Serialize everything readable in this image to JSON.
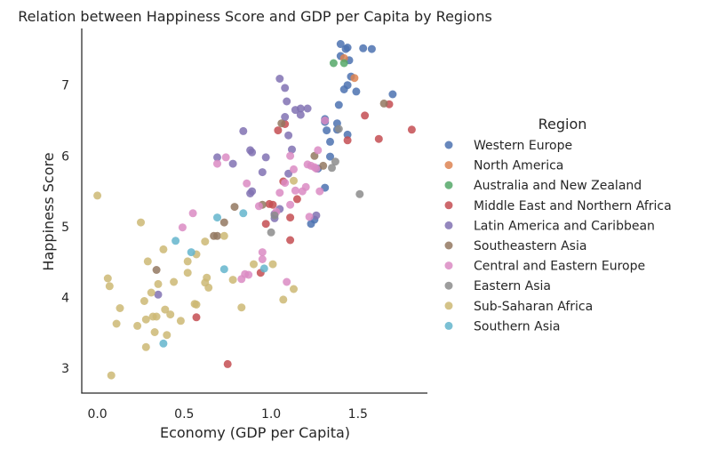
{
  "chart_data": {
    "type": "scatter",
    "title": "Relation between Happiness Score and GDP per Capita by Regions",
    "xlabel": "Economy (GDP per Capita)",
    "ylabel": "Happiness Score",
    "xlim": [
      -0.09,
      1.9
    ],
    "ylim": [
      2.65,
      7.8
    ],
    "xticks": [
      0.0,
      0.5,
      1.0,
      1.5
    ],
    "xtick_labels": [
      "0.0",
      "0.5",
      "1.0",
      "1.5"
    ],
    "yticks": [
      3,
      4,
      5,
      6,
      7
    ],
    "ytick_labels": [
      "3",
      "4",
      "5",
      "6",
      "7"
    ],
    "grid": false,
    "legend": {
      "title": "Region",
      "placement": "right"
    },
    "series": [
      {
        "name": "Western Europe",
        "color": "#4c72b0",
        "points": [
          [
            1.4,
            7.58
          ],
          [
            1.44,
            7.53
          ],
          [
            1.53,
            7.52
          ],
          [
            1.58,
            7.51
          ],
          [
            1.43,
            7.51
          ],
          [
            1.4,
            7.41
          ],
          [
            1.45,
            7.35
          ],
          [
            1.46,
            7.12
          ],
          [
            1.44,
            7.0
          ],
          [
            1.49,
            6.91
          ],
          [
            1.42,
            6.94
          ],
          [
            1.7,
            6.87
          ],
          [
            1.39,
            6.72
          ],
          [
            1.31,
            6.48
          ],
          [
            1.38,
            6.46
          ],
          [
            1.31,
            6.52
          ],
          [
            1.32,
            6.36
          ],
          [
            1.44,
            6.3
          ],
          [
            1.38,
            6.37
          ],
          [
            1.34,
            6.2
          ],
          [
            1.34,
            5.99
          ],
          [
            1.27,
            5.82
          ],
          [
            1.31,
            5.55
          ],
          [
            1.25,
            5.1
          ],
          [
            1.23,
            5.04
          ]
        ]
      },
      {
        "name": "North America",
        "color": "#dd8452",
        "points": [
          [
            1.48,
            7.1
          ],
          [
            1.42,
            7.38
          ]
        ]
      },
      {
        "name": "Australia and New Zealand",
        "color": "#55a868",
        "points": [
          [
            1.36,
            7.31
          ],
          [
            1.42,
            7.31
          ]
        ]
      },
      {
        "name": "Middle East and Northern Africa",
        "color": "#c44e52",
        "points": [
          [
            1.81,
            6.37
          ],
          [
            1.62,
            6.24
          ],
          [
            1.54,
            6.57
          ],
          [
            1.68,
            6.73
          ],
          [
            1.44,
            6.22
          ],
          [
            1.04,
            6.36
          ],
          [
            1.07,
            5.64
          ],
          [
            0.99,
            5.32
          ],
          [
            1.01,
            5.31
          ],
          [
            1.15,
            5.39
          ],
          [
            1.11,
            5.13
          ],
          [
            0.97,
            5.04
          ],
          [
            0.94,
            4.35
          ],
          [
            0.57,
            3.72
          ],
          [
            0.75,
            3.06
          ],
          [
            1.11,
            4.81
          ],
          [
            1.08,
            6.45
          ]
        ]
      },
      {
        "name": "Latin America and Caribbean",
        "color": "#8172b3",
        "points": [
          [
            1.05,
            7.09
          ],
          [
            1.08,
            6.96
          ],
          [
            1.09,
            6.77
          ],
          [
            1.14,
            6.65
          ],
          [
            1.17,
            6.67
          ],
          [
            1.21,
            6.67
          ],
          [
            1.17,
            6.58
          ],
          [
            1.08,
            6.55
          ],
          [
            1.1,
            6.29
          ],
          [
            0.84,
            6.35
          ],
          [
            1.12,
            6.09
          ],
          [
            0.88,
            6.08
          ],
          [
            0.89,
            6.05
          ],
          [
            0.97,
            5.98
          ],
          [
            0.69,
            5.98
          ],
          [
            0.95,
            5.77
          ],
          [
            0.78,
            5.89
          ],
          [
            1.1,
            5.75
          ],
          [
            0.88,
            5.47
          ],
          [
            0.89,
            5.5
          ],
          [
            1.02,
            5.18
          ],
          [
            1.02,
            5.12
          ],
          [
            1.05,
            5.25
          ],
          [
            1.26,
            5.16
          ],
          [
            0.35,
            4.04
          ]
        ]
      },
      {
        "name": "Southeastern Asia",
        "color": "#937860",
        "points": [
          [
            1.65,
            6.74
          ],
          [
            1.06,
            6.46
          ],
          [
            1.3,
            5.86
          ],
          [
            1.25,
            6.0
          ],
          [
            0.95,
            5.31
          ],
          [
            0.79,
            5.28
          ],
          [
            0.73,
            5.06
          ],
          [
            0.69,
            4.87
          ],
          [
            0.67,
            4.87
          ],
          [
            0.34,
            4.39
          ]
        ]
      },
      {
        "name": "Central and Eastern Europe",
        "color": "#da8bc3",
        "points": [
          [
            1.31,
            6.5
          ],
          [
            1.27,
            6.08
          ],
          [
            1.11,
            6.0
          ],
          [
            1.08,
            5.62
          ],
          [
            1.13,
            5.81
          ],
          [
            1.21,
            5.88
          ],
          [
            1.23,
            5.86
          ],
          [
            1.25,
            5.84
          ],
          [
            1.26,
            5.82
          ],
          [
            1.2,
            5.56
          ],
          [
            1.14,
            5.51
          ],
          [
            1.05,
            5.48
          ],
          [
            1.11,
            5.31
          ],
          [
            1.22,
            5.14
          ],
          [
            1.03,
            5.21
          ],
          [
            0.95,
            4.64
          ],
          [
            0.95,
            4.54
          ],
          [
            0.93,
            5.29
          ],
          [
            0.87,
            4.32
          ],
          [
            0.85,
            4.33
          ],
          [
            0.83,
            4.26
          ],
          [
            0.69,
            5.89
          ],
          [
            0.74,
            5.98
          ],
          [
            0.55,
            5.19
          ],
          [
            0.49,
            4.99
          ],
          [
            1.09,
            4.22
          ],
          [
            1.18,
            5.5
          ],
          [
            1.28,
            5.5
          ],
          [
            0.86,
            5.61
          ]
        ]
      },
      {
        "name": "Eastern Asia",
        "color": "#8c8c8c",
        "points": [
          [
            1.37,
            5.92
          ],
          [
            1.35,
            5.83
          ],
          [
            1.51,
            5.46
          ],
          [
            1.39,
            6.38
          ],
          [
            1.0,
            4.92
          ],
          [
            1.02,
            5.16
          ]
        ]
      },
      {
        "name": "Sub-Saharan Africa",
        "color": "#ccb974",
        "points": [
          [
            0.0,
            5.44
          ],
          [
            0.25,
            5.06
          ],
          [
            0.07,
            4.16
          ],
          [
            0.06,
            4.27
          ],
          [
            0.13,
            3.85
          ],
          [
            0.11,
            3.63
          ],
          [
            0.27,
            3.95
          ],
          [
            0.28,
            3.69
          ],
          [
            0.32,
            3.73
          ],
          [
            0.34,
            3.73
          ],
          [
            0.31,
            4.07
          ],
          [
            0.35,
            4.19
          ],
          [
            0.38,
            4.68
          ],
          [
            0.29,
            4.51
          ],
          [
            0.44,
            4.22
          ],
          [
            0.52,
            4.51
          ],
          [
            0.52,
            4.35
          ],
          [
            0.57,
            4.61
          ],
          [
            0.62,
            4.79
          ],
          [
            0.63,
            4.28
          ],
          [
            0.64,
            4.14
          ],
          [
            0.62,
            4.21
          ],
          [
            0.56,
            3.91
          ],
          [
            0.57,
            3.9
          ],
          [
            0.78,
            4.25
          ],
          [
            0.83,
            3.86
          ],
          [
            0.9,
            4.47
          ],
          [
            1.01,
            4.47
          ],
          [
            1.07,
            3.97
          ],
          [
            1.13,
            4.12
          ],
          [
            1.13,
            5.65
          ],
          [
            0.39,
            3.83
          ],
          [
            0.42,
            3.76
          ],
          [
            0.48,
            3.67
          ],
          [
            0.4,
            3.47
          ],
          [
            0.33,
            3.51
          ],
          [
            0.23,
            3.6
          ],
          [
            0.28,
            3.3
          ],
          [
            0.08,
            2.9
          ],
          [
            0.73,
            4.87
          ]
        ]
      },
      {
        "name": "Southern Asia",
        "color": "#64b5cd",
        "points": [
          [
            0.69,
            5.13
          ],
          [
            0.45,
            4.8
          ],
          [
            0.54,
            4.64
          ],
          [
            0.73,
            4.4
          ],
          [
            0.96,
            4.41
          ],
          [
            0.38,
            3.35
          ],
          [
            0.84,
            5.19
          ]
        ]
      }
    ]
  }
}
